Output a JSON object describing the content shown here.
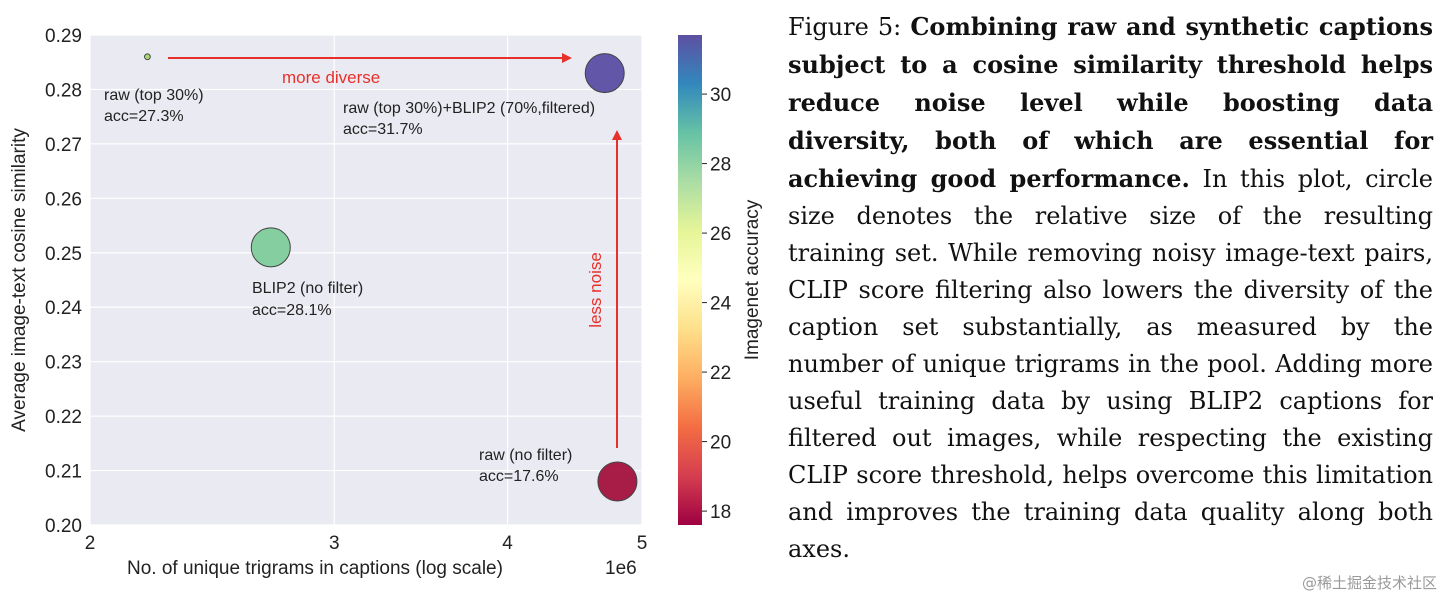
{
  "chart_data": {
    "type": "scatter",
    "xlabel": "No. of unique trigrams in captions (log scale)",
    "x_scale": "log",
    "x_exponent_label": "1e6",
    "xlim": [
      2,
      5
    ],
    "x_ticks": [
      2,
      3,
      4,
      5
    ],
    "ylabel": "Average image-text cosine similarity",
    "ylim": [
      0.2,
      0.29
    ],
    "y_ticks": [
      "0.20",
      "0.21",
      "0.22",
      "0.23",
      "0.24",
      "0.25",
      "0.26",
      "0.27",
      "0.28",
      "0.29"
    ],
    "grid": true,
    "colorbar": {
      "label": "Imagenet accuracy",
      "range": [
        17.6,
        31.7
      ],
      "ticks": [
        18,
        20,
        22,
        24,
        26,
        28,
        30
      ],
      "colormap": "Spectral"
    },
    "points": [
      {
        "name": "raw (top 30%)",
        "acc_label": "acc=27.3%",
        "x": 2.2,
        "y": 0.286,
        "accuracy": 27.3,
        "relative_size": 0.3,
        "color": "#a6d96a"
      },
      {
        "name": "raw (top 30%)+BLIP2 (70%,filtered)",
        "acc_label": "acc=31.7%",
        "x": 4.7,
        "y": 0.283,
        "accuracy": 31.7,
        "relative_size": 1.0,
        "color": "#5a4ea2"
      },
      {
        "name": "BLIP2 (no filter)",
        "acc_label": "acc=28.1%",
        "x": 2.7,
        "y": 0.251,
        "accuracy": 28.1,
        "relative_size": 1.0,
        "color": "#7fcc9a"
      },
      {
        "name": "raw (no filter)",
        "acc_label": "acc=17.6%",
        "x": 4.8,
        "y": 0.208,
        "accuracy": 17.6,
        "relative_size": 1.0,
        "color": "#a3123e"
      }
    ],
    "annotations": [
      {
        "text": "more diverse",
        "color": "#e8302a"
      },
      {
        "text": "less noise",
        "color": "#e8302a"
      }
    ]
  },
  "caption": {
    "figure_label": "Figure 5:",
    "bold_text": "Combining raw and synthetic captions subject to a cosine similarity threshold helps reduce noise level while boosting data diversity, both of which are essential for achieving good performance.",
    "body_text": "In this plot, circle size denotes the relative size of the resulting training set. While removing noisy image-text pairs, CLIP score filtering also lowers the diversity of the caption set substantially, as measured by the number of unique trigrams in the pool. Adding more useful training data by using BLIP2 captions for filtered out images, while respecting the existing CLIP score threshold, helps overcome this limitation and improves the training data quality along both axes."
  },
  "watermark": "@稀土掘金技术社区"
}
